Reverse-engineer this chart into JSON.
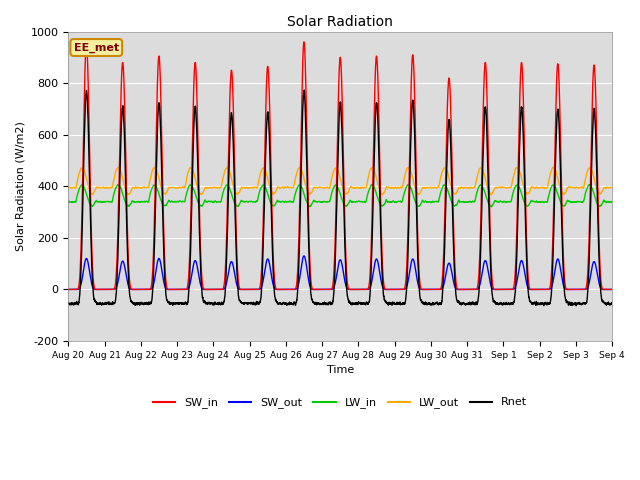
{
  "title": "Solar Radiation",
  "ylabel": "Solar Radiation (W/m2)",
  "xlabel": "Time",
  "ylim": [
    -200,
    1000
  ],
  "xlim": [
    0,
    15
  ],
  "bg_color": "#dcdcdc",
  "annotation_text": "EE_met",
  "annotation_bg": "#f5f0a0",
  "annotation_border": "#cc8800",
  "tick_labels": [
    "Aug 20",
    "Aug 21",
    "Aug 22",
    "Aug 23",
    "Aug 24",
    "Aug 25",
    "Aug 26",
    "Aug 27",
    "Aug 28",
    "Aug 29",
    "Aug 30",
    "Aug 31",
    "Sep 1",
    "Sep 2",
    "Sep 3",
    "Sep 4"
  ],
  "legend_labels": [
    "SW_in",
    "SW_out",
    "LW_in",
    "LW_out",
    "Rnet"
  ],
  "legend_colors": [
    "#ff0000",
    "#0000ff",
    "#00cc00",
    "#ffaa00",
    "#000000"
  ],
  "num_days": 15,
  "peak_heights_sw_in": [
    950,
    880,
    905,
    880,
    850,
    865,
    960,
    900,
    905,
    910,
    820,
    880,
    880,
    875,
    870
  ],
  "peak_heights_sw_out": [
    120,
    110,
    120,
    112,
    108,
    118,
    130,
    115,
    118,
    118,
    102,
    112,
    112,
    118,
    108
  ]
}
